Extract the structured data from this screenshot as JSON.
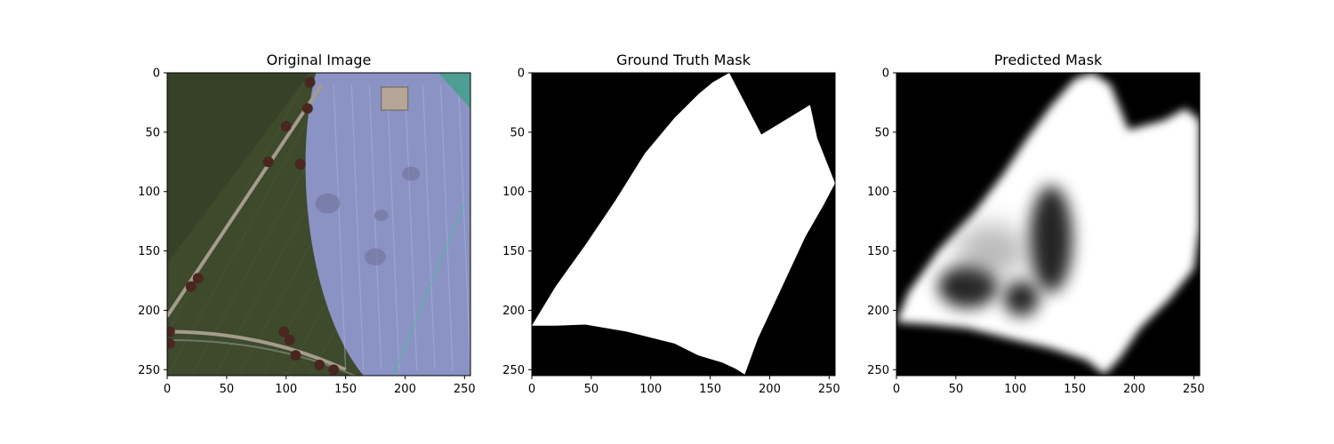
{
  "figure": {
    "background": "#ffffff"
  },
  "chart_data": [
    {
      "type": "image",
      "title": "Original Image",
      "xlabel": "",
      "ylabel": "",
      "xlim": [
        0,
        255
      ],
      "ylim": [
        255,
        0
      ],
      "x_ticks": [
        0,
        50,
        100,
        150,
        200,
        250
      ],
      "y_ticks": [
        0,
        50,
        100,
        150,
        200,
        250
      ],
      "colors": {
        "field": "#3e4a2c",
        "field_dark": "#323d24",
        "soil_overlay": "#8a93c4",
        "road": "#a59c8c",
        "trees": "#4a2620",
        "roof": "#b4a596",
        "water": "#4e9e93"
      }
    },
    {
      "type": "image",
      "title": "Ground Truth Mask",
      "xlabel": "",
      "ylabel": "",
      "xlim": [
        0,
        255
      ],
      "ylim": [
        255,
        0
      ],
      "x_ticks": [
        0,
        50,
        100,
        150,
        200,
        250
      ],
      "y_ticks": [
        0,
        50,
        100,
        150,
        200,
        250
      ],
      "mask_polygon": [
        [
          0,
          213
        ],
        [
          20,
          213
        ],
        [
          45,
          212
        ],
        [
          80,
          218
        ],
        [
          120,
          228
        ],
        [
          140,
          238
        ],
        [
          160,
          244
        ],
        [
          171,
          249
        ],
        [
          179,
          254
        ],
        [
          190,
          224
        ],
        [
          205,
          192
        ],
        [
          230,
          138
        ],
        [
          245,
          112
        ],
        [
          255,
          93
        ],
        [
          240,
          55
        ],
        [
          234,
          27
        ],
        [
          193,
          52
        ],
        [
          166,
          0
        ],
        [
          152,
          8
        ],
        [
          140,
          18
        ],
        [
          120,
          38
        ],
        [
          95,
          68
        ],
        [
          70,
          108
        ],
        [
          45,
          145
        ],
        [
          20,
          180
        ]
      ],
      "colors": {
        "background": "#000000",
        "mask": "#ffffff"
      }
    },
    {
      "type": "image",
      "title": "Predicted Mask",
      "xlabel": "",
      "ylabel": "",
      "xlim": [
        0,
        255
      ],
      "ylim": [
        255,
        0
      ],
      "x_ticks": [
        0,
        50,
        100,
        150,
        200,
        250
      ],
      "y_ticks": [
        0,
        50,
        100,
        150,
        200,
        250
      ],
      "mask_polygon": [
        [
          0,
          210
        ],
        [
          30,
          212
        ],
        [
          60,
          215
        ],
        [
          100,
          225
        ],
        [
          130,
          232
        ],
        [
          160,
          242
        ],
        [
          175,
          254
        ],
        [
          188,
          240
        ],
        [
          205,
          215
        ],
        [
          230,
          190
        ],
        [
          250,
          165
        ],
        [
          255,
          130
        ],
        [
          255,
          40
        ],
        [
          243,
          30
        ],
        [
          225,
          40
        ],
        [
          195,
          48
        ],
        [
          180,
          10
        ],
        [
          165,
          0
        ],
        [
          150,
          5
        ],
        [
          130,
          28
        ],
        [
          110,
          55
        ],
        [
          90,
          85
        ],
        [
          65,
          118
        ],
        [
          35,
          150
        ],
        [
          10,
          185
        ]
      ],
      "dark_patches": [
        {
          "cx": 130,
          "cy": 140,
          "rx": 18,
          "ry": 45
        },
        {
          "cx": 60,
          "cy": 180,
          "rx": 25,
          "ry": 18
        },
        {
          "cx": 105,
          "cy": 190,
          "rx": 15,
          "ry": 15
        }
      ],
      "colors": {
        "background": "#000000",
        "mask": "#ffffff"
      }
    }
  ]
}
